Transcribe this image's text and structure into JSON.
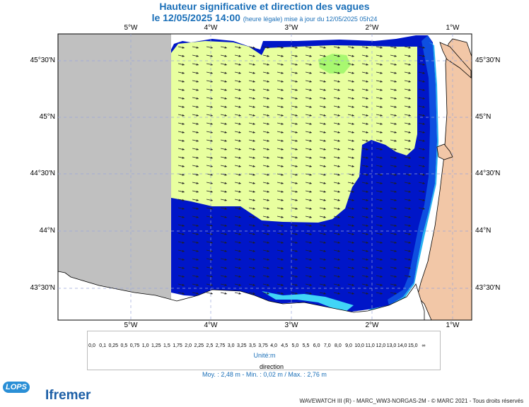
{
  "header": {
    "title": "Hauteur significative et direction des vagues",
    "date_label": "le 12/05/2025 14:00",
    "date_note": "(heure légale) mise à jour du 12/05/2025 05h24"
  },
  "axes": {
    "lon_ticks": [
      "5°W",
      "4°W",
      "3°W",
      "2°W",
      "1°W"
    ],
    "lat_ticks": [
      "45°30'N",
      "45°N",
      "44°30'N",
      "44°N",
      "43°30'N"
    ]
  },
  "legend": {
    "labels": [
      "0,0",
      "0,1",
      "0,25",
      "0,5",
      "0,75",
      "1,0",
      "1,25",
      "1,5",
      "1,75",
      "2,0",
      "2,25",
      "2,5",
      "2,75",
      "3,0",
      "3,25",
      "3,5",
      "3,75",
      "4,0",
      "4,5",
      "5,0",
      "5,5",
      "6,0",
      "7,0",
      "8,0",
      "9,0",
      "10,0",
      "11,0",
      "12,0",
      "13,0",
      "14,0",
      "15,0",
      "∞"
    ],
    "colors": [
      "#f0e4dc",
      "#dcc3b5",
      "#c8a58f",
      "#b7a0e6",
      "#9e7bd8",
      "#7d49c7",
      "#88f6ff",
      "#40d5f7",
      "#27b2f0",
      "#1b84eb",
      "#0e4fe0",
      "#0016c8",
      "#e8ff9f",
      "#c7ff6c",
      "#83ff57",
      "#48f043",
      "#2bdc6a",
      "#13bf35",
      "#089a2d",
      "#f4ff1b",
      "#ffd700",
      "#ffad00",
      "#ff8a00",
      "#ff5151",
      "#f6a4a4",
      "#e37070",
      "#9c5524",
      "#7a3411",
      "#b30000",
      "#820000",
      "#e600e0",
      "#9c0092"
    ],
    "unit": "Unité:m",
    "direction_label": "direction"
  },
  "stats": "Moy. : 2,48 m   -   Min. : 0,02 m / Max. : 2,76 m",
  "credit": "WAVEWATCH III (R) - MARC_WW3-NORGAS-2M - © MARC 2021 - Tous droits réservés",
  "logos": {
    "lops": "LOPS",
    "ifremer": "Ifremer"
  },
  "map": {
    "land_color": "#f2c7a7",
    "nodata_color": "#c0c0c0",
    "wave_mean_direction_deg_to": 102
  }
}
